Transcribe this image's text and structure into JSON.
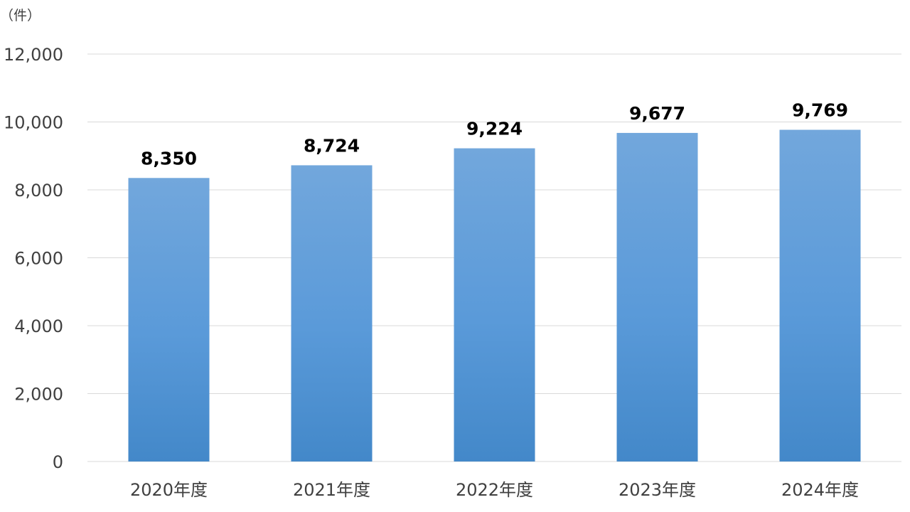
{
  "chart_data": {
    "type": "bar",
    "unit_label": "（件）",
    "categories": [
      "2020年度",
      "2021年度",
      "2022年度",
      "2023年度",
      "2024年度"
    ],
    "values": [
      8350,
      8724,
      9224,
      9677,
      9769
    ],
    "data_labels": [
      "8,350",
      "8,724",
      "9,224",
      "9,677",
      "9,769"
    ],
    "yticks": [
      0,
      2000,
      4000,
      6000,
      8000,
      10000,
      12000
    ],
    "ytick_labels": [
      "0",
      "2,000",
      "4,000",
      "6,000",
      "8,000",
      "10,000",
      "12,000"
    ],
    "ylim": [
      0,
      12000
    ],
    "grid": true,
    "legend": "none",
    "bar_color_top": "#72a7dc",
    "bar_color_bottom": "#4388c9"
  }
}
